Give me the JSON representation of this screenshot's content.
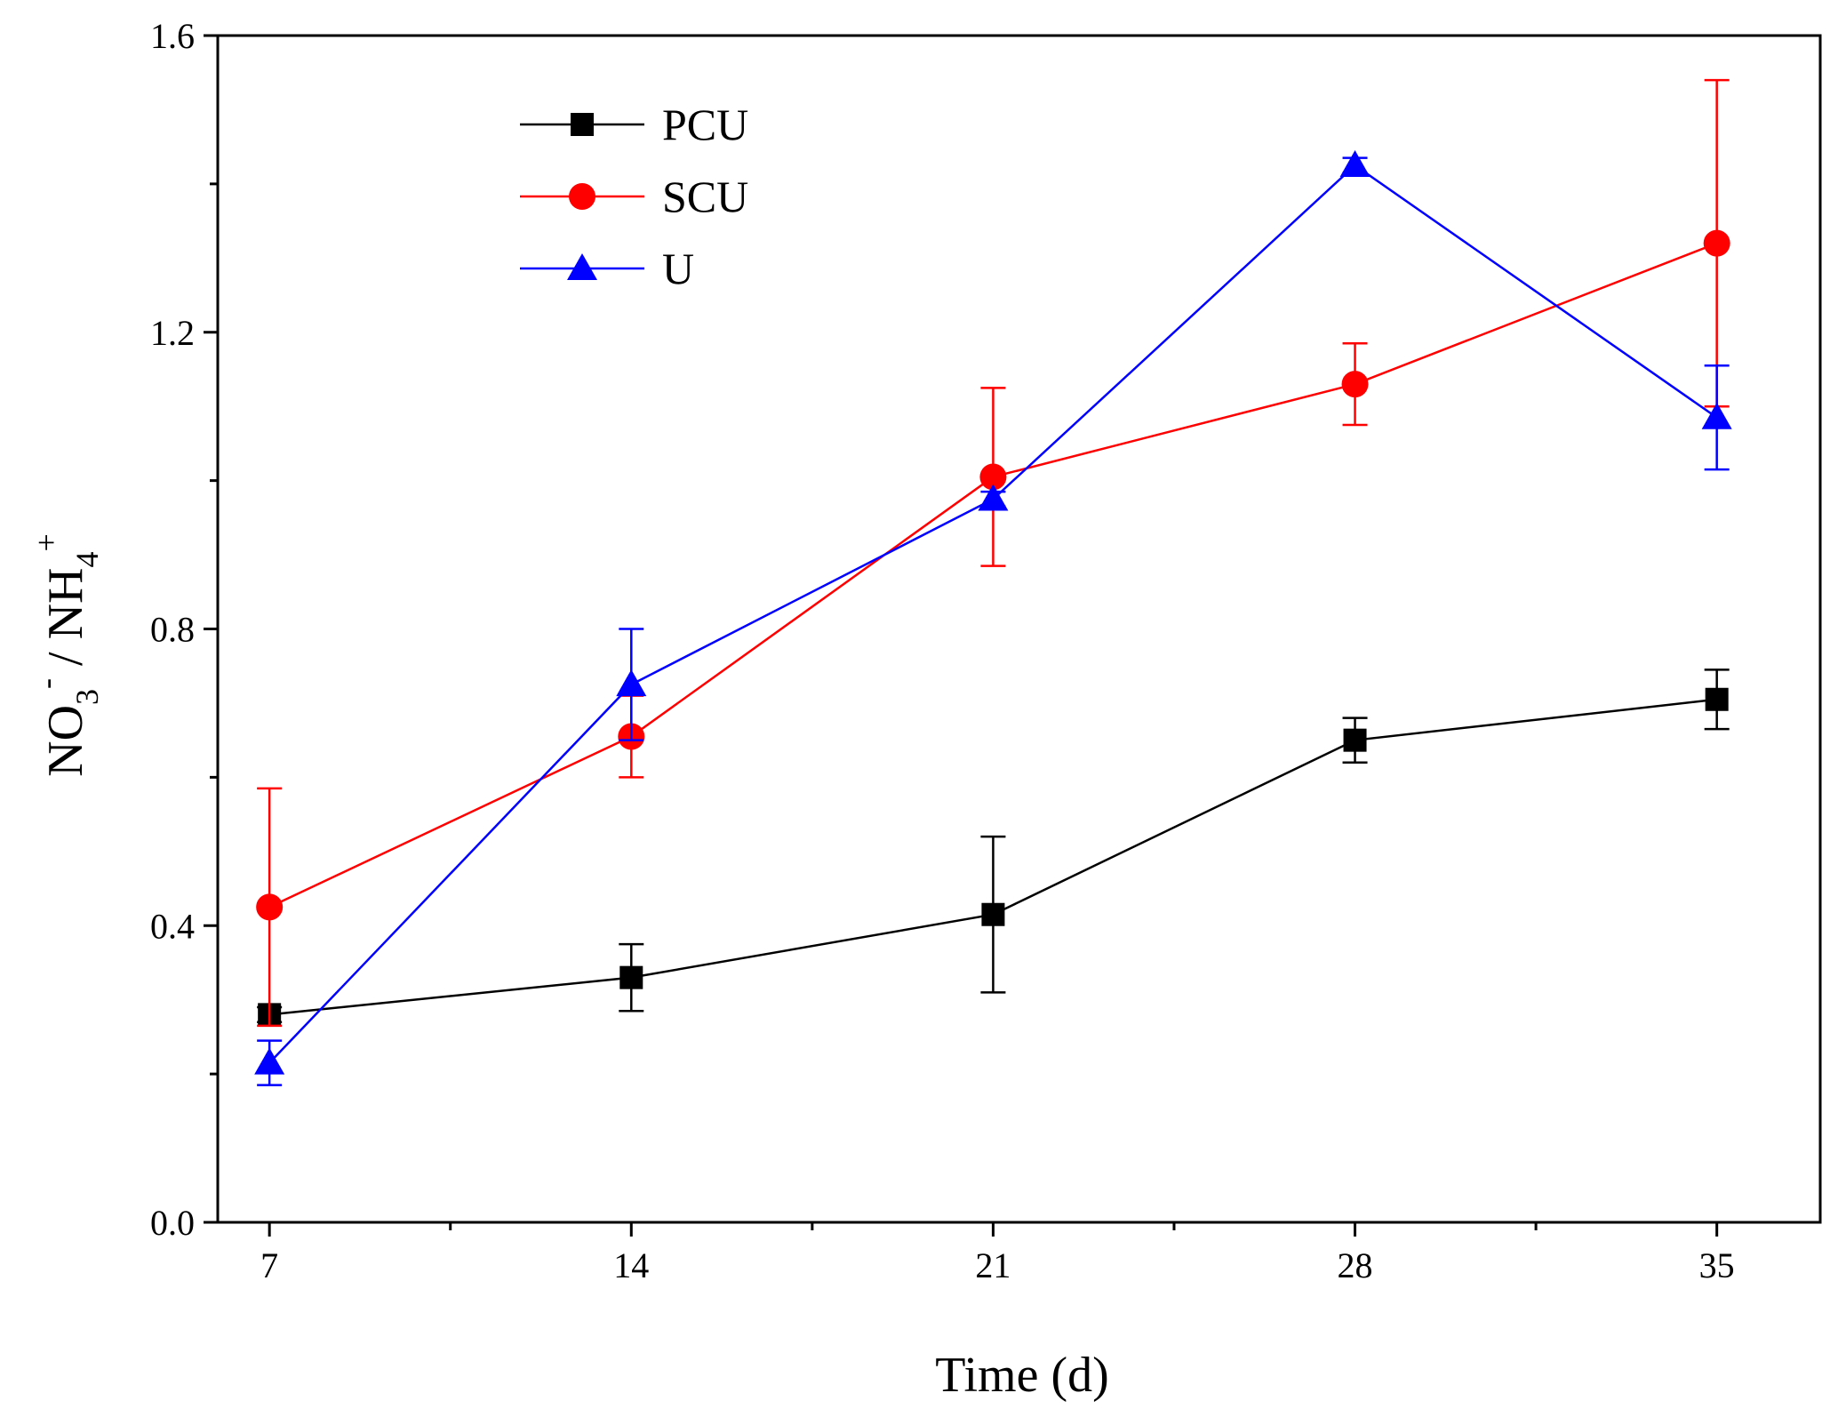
{
  "chart_data": {
    "type": "line",
    "x": [
      7,
      14,
      21,
      28,
      35
    ],
    "xlabel": "Time (d)",
    "ylabel": {
      "base": "NO",
      "sub1": "3",
      "sup1": "-",
      "sep": " / NH",
      "sub2": "4",
      "sup2": "+"
    },
    "xlim": [
      6,
      37
    ],
    "ylim": [
      0.0,
      1.6
    ],
    "xticks": [
      7,
      14,
      21,
      28,
      35
    ],
    "yticks": [
      "0.0",
      "0.4",
      "0.8",
      "1.2",
      "1.6"
    ],
    "grid": false,
    "legend_position": "top-left",
    "series": [
      {
        "name": "PCU",
        "color": "#000000",
        "marker": "square",
        "values": [
          0.28,
          0.33,
          0.415,
          0.65,
          0.705
        ],
        "errors": [
          0.01,
          0.045,
          0.105,
          0.03,
          0.04
        ]
      },
      {
        "name": "SCU",
        "color": "#ff0000",
        "marker": "circle",
        "values": [
          0.425,
          0.655,
          1.005,
          1.13,
          1.32
        ],
        "errors": [
          0.16,
          0.055,
          0.12,
          0.055,
          0.22
        ]
      },
      {
        "name": "U",
        "color": "#0000ff",
        "marker": "triangle",
        "values": [
          0.215,
          0.725,
          0.975,
          1.425,
          1.085
        ],
        "errors": [
          0.03,
          0.075,
          0.01,
          0.01,
          0.07
        ]
      }
    ]
  }
}
